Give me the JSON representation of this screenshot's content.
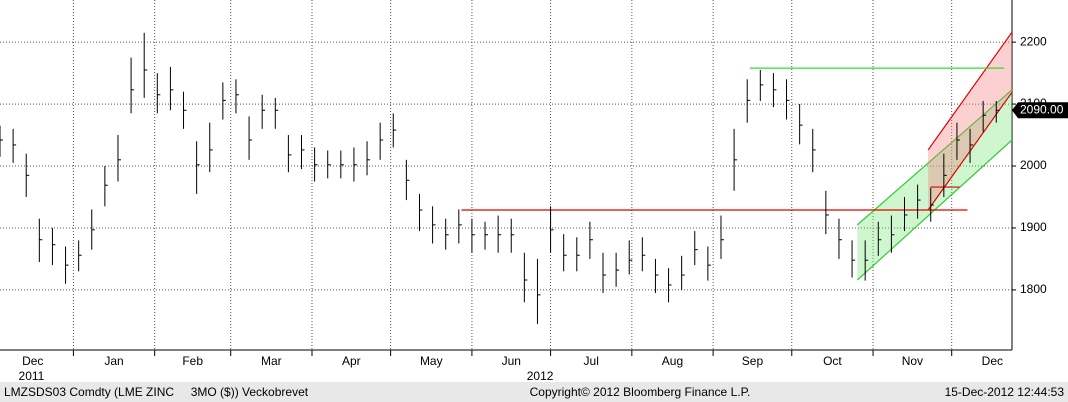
{
  "chart_data": {
    "type": "ohlc",
    "x": [
      3,
      8,
      13,
      18,
      23,
      28,
      33,
      38,
      43,
      48,
      53,
      58,
      63,
      68,
      73,
      78,
      83,
      88,
      93,
      98,
      103,
      108,
      113,
      118,
      123,
      128,
      133,
      138,
      143,
      148,
      153,
      158,
      163,
      168,
      173,
      178,
      183,
      188,
      193,
      198,
      203,
      208,
      213,
      218,
      223,
      228,
      233,
      238,
      243,
      248,
      253,
      258,
      263,
      268,
      273,
      278,
      283,
      288,
      293,
      298,
      303,
      308,
      313,
      318,
      323,
      328,
      333,
      338,
      343,
      348,
      353,
      358,
      363,
      368,
      373,
      378,
      383
    ],
    "high": [
      2065,
      2060,
      2020,
      1915,
      1900,
      1870,
      1880,
      1930,
      2000,
      2050,
      2175,
      2215,
      2150,
      2160,
      2120,
      2040,
      2070,
      2135,
      2140,
      2080,
      2115,
      2110,
      2050,
      2050,
      2030,
      2025,
      2025,
      2030,
      2040,
      2070,
      2085,
      2010,
      1955,
      1935,
      1915,
      1930,
      1915,
      1910,
      1920,
      1915,
      1860,
      1850,
      1935,
      1890,
      1885,
      1910,
      1860,
      1860,
      1880,
      1885,
      1850,
      1835,
      1855,
      1895,
      1870,
      1920,
      2060,
      2140,
      2155,
      2150,
      2140,
      2100,
      2060,
      1960,
      1915,
      1880,
      1880,
      1910,
      1920,
      1950,
      1970,
      1965,
      2020,
      2070,
      2060,
      2105,
      2105
    ],
    "low": [
      2015,
      2005,
      1950,
      1845,
      1840,
      1810,
      1830,
      1865,
      1935,
      1975,
      2085,
      2110,
      2085,
      2090,
      2060,
      1955,
      1990,
      2075,
      2085,
      2010,
      2060,
      2060,
      1990,
      1995,
      1975,
      1980,
      1980,
      1975,
      1985,
      2010,
      2030,
      1945,
      1895,
      1875,
      1865,
      1875,
      1860,
      1865,
      1860,
      1860,
      1780,
      1745,
      1860,
      1830,
      1830,
      1850,
      1795,
      1805,
      1825,
      1830,
      1795,
      1780,
      1800,
      1840,
      1815,
      1850,
      1960,
      2070,
      2105,
      2095,
      2075,
      2035,
      1990,
      1890,
      1850,
      1820,
      1815,
      1855,
      1860,
      1895,
      1915,
      1910,
      1950,
      2010,
      2005,
      2055,
      2070
    ],
    "close": [
      2042,
      2034,
      1985,
      1881,
      1873,
      1840,
      1856,
      1897,
      1969,
      2010,
      2123,
      2155,
      2115,
      2123,
      2090,
      2002,
      2026,
      2106,
      2115,
      2042,
      2090,
      2090,
      2018,
      2026,
      2002,
      2002,
      2002,
      2002,
      2010,
      2042,
      2058,
      1977,
      1929,
      1905,
      1889,
      1905,
      1889,
      1889,
      1889,
      1889,
      1816,
      1792,
      1897,
      1856,
      1856,
      1881,
      1824,
      1832,
      1848,
      1856,
      1824,
      1808,
      1824,
      1865,
      1840,
      1881,
      2010,
      2106,
      2131,
      2123,
      2106,
      2066,
      2026,
      1921,
      1881,
      1848,
      1848,
      1881,
      1889,
      1921,
      1945,
      1937,
      1985,
      2042,
      2034,
      2082,
      2090
    ],
    "color": "#000000",
    "xlim": [
      3,
      389
    ],
    "ylim": [
      1703,
      2268
    ],
    "yticks": [
      1800,
      1900,
      2000,
      2100,
      2200
    ],
    "xticks": [
      {
        "value": 0,
        "label": "Dec"
      },
      {
        "value": 31,
        "label": "Jan"
      },
      {
        "value": 62,
        "label": "Feb"
      },
      {
        "value": 91,
        "label": "Mar"
      },
      {
        "value": 122,
        "label": "Apr"
      },
      {
        "value": 152,
        "label": "May"
      },
      {
        "value": 183,
        "label": "Jun"
      },
      {
        "value": 213,
        "label": "Jul"
      },
      {
        "value": 244,
        "label": "Aug"
      },
      {
        "value": 275,
        "label": "Sep"
      },
      {
        "value": 305,
        "label": "Oct"
      },
      {
        "value": 336,
        "label": "Nov"
      },
      {
        "value": 366,
        "label": "Dec"
      }
    ],
    "year_ticks": [
      {
        "value": 15,
        "label": "2011"
      },
      {
        "value": 209,
        "label": "2012"
      }
    ],
    "grid": true,
    "last_price": {
      "value": 2090,
      "label": "2090.00"
    },
    "lines": [
      {
        "color": "#e00000",
        "x": [
          179,
          372
        ],
        "y": [
          1929,
          1929
        ]
      },
      {
        "color": "#33dd33",
        "x": [
          289,
          386
        ],
        "y": [
          2158,
          2158
        ]
      },
      {
        "color": "#e00000",
        "x": [
          358,
          369
        ],
        "y": [
          1966,
          1966
        ]
      }
    ],
    "channels": [
      {
        "color": "#33cc33",
        "fill": "rgba(120,230,120,0.35)",
        "x": [
          330,
          389
        ],
        "lower": [
          1816,
          2042
        ],
        "upper": [
          1905,
          2123
        ]
      },
      {
        "color": "#e00000",
        "fill": "rgba(240,120,120,0.35)",
        "x": [
          357,
          389
        ],
        "lower": [
          1929,
          2119
        ],
        "upper": [
          2026,
          2216
        ]
      }
    ],
    "footer": {
      "left": "LMZSDS03 Comdty (LME ZINC     3MO ($)) Veckobrevet",
      "center": "Copyright© 2012 Bloomberg Finance L.P.",
      "right": "15-Dec-2012 12:44:53"
    }
  }
}
